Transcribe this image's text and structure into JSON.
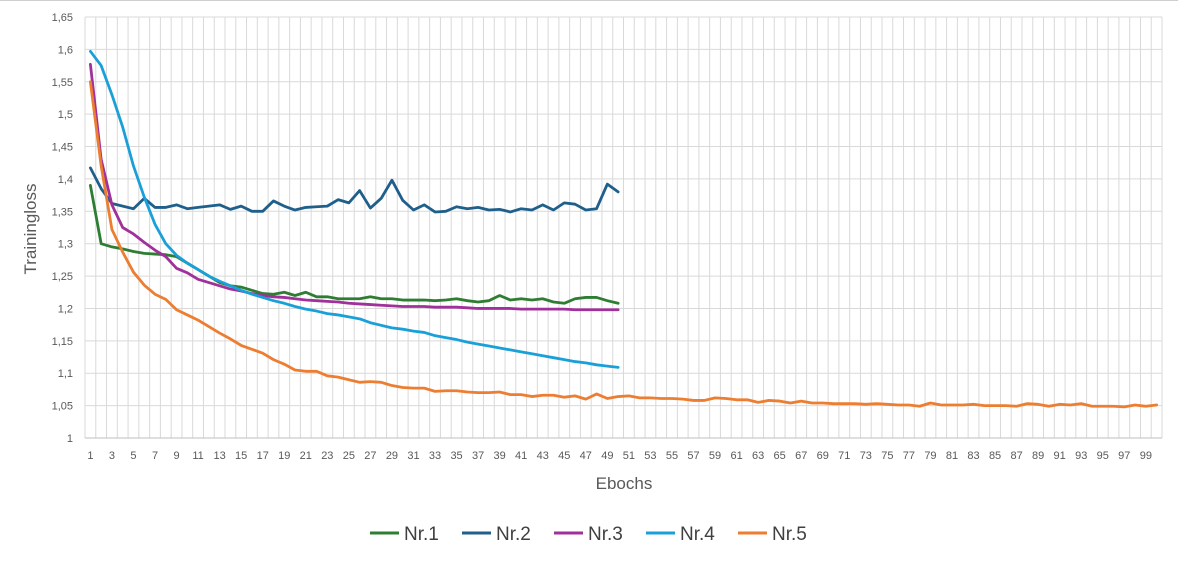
{
  "chart_data": {
    "type": "line",
    "xlabel": "Ebochs",
    "ylabel": "Trainingloss",
    "ylim": [
      1,
      1.65
    ],
    "y_ticks": [
      "1",
      "1,05",
      "1,1",
      "1,15",
      "1,2",
      "1,25",
      "1,3",
      "1,35",
      "1,4",
      "1,45",
      "1,5",
      "1,55",
      "1,6",
      "1,65"
    ],
    "x_range": [
      1,
      100
    ],
    "x_tick_step": 2,
    "grid": true,
    "legend_position": "bottom",
    "series": [
      {
        "name": "Nr.1",
        "color": "#2e7d32",
        "values": [
          1.39,
          1.3,
          1.295,
          1.292,
          1.288,
          1.285,
          1.284,
          1.283,
          1.28,
          1.27,
          1.26,
          1.25,
          1.24,
          1.235,
          1.233,
          1.228,
          1.223,
          1.222,
          1.225,
          1.22,
          1.225,
          1.218,
          1.218,
          1.215,
          1.215,
          1.215,
          1.218,
          1.215,
          1.215,
          1.213,
          1.213,
          1.213,
          1.212,
          1.213,
          1.215,
          1.212,
          1.21,
          1.212,
          1.22,
          1.213,
          1.215,
          1.213,
          1.215,
          1.21,
          1.208,
          1.215,
          1.217,
          1.217,
          1.212,
          1.208
        ]
      },
      {
        "name": "Nr.2",
        "color": "#1f5f8b",
        "values": [
          1.417,
          1.385,
          1.362,
          1.358,
          1.354,
          1.37,
          1.356,
          1.356,
          1.36,
          1.354,
          1.356,
          1.358,
          1.36,
          1.353,
          1.358,
          1.35,
          1.35,
          1.366,
          1.358,
          1.352,
          1.356,
          1.357,
          1.358,
          1.368,
          1.363,
          1.382,
          1.355,
          1.37,
          1.398,
          1.367,
          1.352,
          1.36,
          1.349,
          1.35,
          1.357,
          1.354,
          1.356,
          1.352,
          1.353,
          1.349,
          1.354,
          1.352,
          1.36,
          1.352,
          1.363,
          1.361,
          1.352,
          1.354,
          1.392,
          1.38
        ]
      },
      {
        "name": "Nr.3",
        "color": "#a0309a",
        "values": [
          1.577,
          1.43,
          1.36,
          1.325,
          1.315,
          1.302,
          1.29,
          1.28,
          1.262,
          1.255,
          1.245,
          1.24,
          1.235,
          1.23,
          1.227,
          1.223,
          1.22,
          1.218,
          1.217,
          1.215,
          1.213,
          1.212,
          1.211,
          1.21,
          1.208,
          1.207,
          1.206,
          1.205,
          1.204,
          1.203,
          1.203,
          1.203,
          1.202,
          1.202,
          1.202,
          1.201,
          1.2,
          1.2,
          1.2,
          1.2,
          1.199,
          1.199,
          1.199,
          1.199,
          1.199,
          1.198,
          1.198,
          1.198,
          1.198,
          1.198
        ]
      },
      {
        "name": "Nr.4",
        "color": "#1aa0d8",
        "values": [
          1.597,
          1.575,
          1.53,
          1.48,
          1.42,
          1.372,
          1.33,
          1.3,
          1.282,
          1.27,
          1.26,
          1.25,
          1.242,
          1.235,
          1.228,
          1.222,
          1.217,
          1.212,
          1.208,
          1.203,
          1.199,
          1.196,
          1.192,
          1.19,
          1.187,
          1.184,
          1.178,
          1.174,
          1.17,
          1.168,
          1.165,
          1.163,
          1.158,
          1.155,
          1.152,
          1.148,
          1.145,
          1.142,
          1.139,
          1.136,
          1.133,
          1.13,
          1.127,
          1.124,
          1.121,
          1.118,
          1.116,
          1.113,
          1.111,
          1.109
        ]
      },
      {
        "name": "Nr.5",
        "color": "#ed7d31",
        "values": [
          1.55,
          1.42,
          1.322,
          1.287,
          1.256,
          1.236,
          1.222,
          1.214,
          1.198,
          1.19,
          1.182,
          1.172,
          1.162,
          1.153,
          1.143,
          1.137,
          1.131,
          1.121,
          1.114,
          1.105,
          1.103,
          1.103,
          1.096,
          1.094,
          1.09,
          1.086,
          1.087,
          1.086,
          1.081,
          1.078,
          1.077,
          1.077,
          1.072,
          1.073,
          1.073,
          1.071,
          1.07,
          1.07,
          1.071,
          1.067,
          1.067,
          1.064,
          1.066,
          1.066,
          1.063,
          1.065,
          1.06,
          1.068,
          1.061,
          1.064,
          1.065,
          1.062,
          1.062,
          1.061,
          1.061,
          1.06,
          1.058,
          1.058,
          1.062,
          1.061,
          1.059,
          1.059,
          1.055,
          1.058,
          1.057,
          1.054,
          1.057,
          1.054,
          1.054,
          1.053,
          1.053,
          1.053,
          1.052,
          1.053,
          1.052,
          1.051,
          1.051,
          1.049,
          1.054,
          1.051,
          1.051,
          1.051,
          1.052,
          1.05,
          1.05,
          1.05,
          1.049,
          1.053,
          1.052,
          1.049,
          1.052,
          1.051,
          1.053,
          1.049,
          1.049,
          1.049,
          1.048,
          1.051,
          1.049,
          1.051
        ]
      }
    ]
  }
}
